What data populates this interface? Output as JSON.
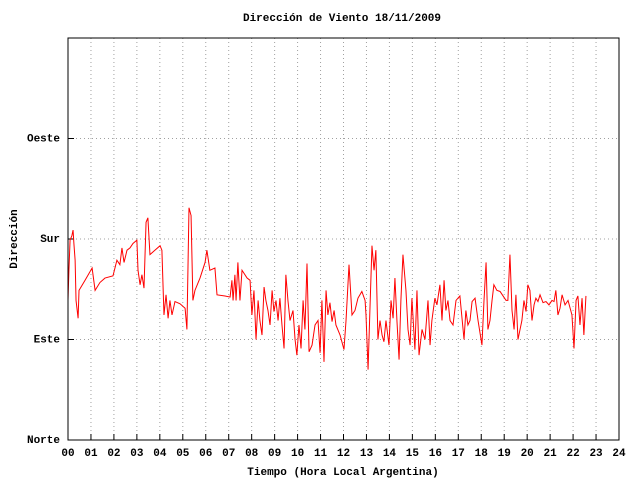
{
  "chart_data": {
    "type": "line",
    "title": "Dirección de Viento 18/11/2009",
    "xlabel": "Tiempo (Hora Local Argentina)",
    "ylabel": "Dirección",
    "color": "#ff0000",
    "grid": true,
    "xlim": [
      0,
      24
    ],
    "ylim": [
      0,
      360
    ],
    "xticks": [
      {
        "value": 0,
        "label": "00"
      },
      {
        "value": 1,
        "label": "01"
      },
      {
        "value": 2,
        "label": "02"
      },
      {
        "value": 3,
        "label": "03"
      },
      {
        "value": 4,
        "label": "04"
      },
      {
        "value": 5,
        "label": "05"
      },
      {
        "value": 6,
        "label": "06"
      },
      {
        "value": 7,
        "label": "07"
      },
      {
        "value": 8,
        "label": "08"
      },
      {
        "value": 9,
        "label": "09"
      },
      10,
      11,
      12,
      13,
      14,
      15,
      16,
      17,
      18,
      19,
      20,
      21,
      22,
      23,
      24
    ],
    "yticks": [
      {
        "value": 0,
        "label": "Norte"
      },
      {
        "value": 90,
        "label": "Este"
      },
      {
        "value": 180,
        "label": "Sur"
      },
      {
        "value": 270,
        "label": "Oeste"
      }
    ],
    "x": [
      0,
      0.04,
      0.09,
      0.17,
      0.22,
      0.26,
      0.31,
      0.35,
      0.44,
      0.48,
      0.74,
      1.05,
      1.18,
      1.39,
      1.61,
      1.96,
      2.13,
      2.26,
      2.35,
      2.44,
      2.57,
      2.7,
      2.83,
      3.0,
      3.05,
      3.14,
      3.22,
      3.31,
      3.4,
      3.48,
      3.57,
      3.79,
      4.01,
      4.09,
      4.18,
      4.27,
      4.36,
      4.44,
      4.53,
      4.66,
      4.88,
      5.1,
      5.18,
      5.27,
      5.36,
      5.44,
      5.53,
      5.75,
      5.97,
      6.05,
      6.18,
      6.4,
      6.49,
      6.84,
      7.06,
      7.14,
      7.19,
      7.27,
      7.32,
      7.4,
      7.49,
      7.58,
      7.8,
      7.93,
      8.01,
      8.1,
      8.19,
      8.28,
      8.36,
      8.45,
      8.54,
      8.62,
      8.71,
      8.8,
      8.89,
      8.97,
      9.06,
      9.15,
      9.23,
      9.32,
      9.41,
      9.49,
      9.58,
      9.67,
      9.8,
      9.89,
      9.97,
      10.06,
      10.15,
      10.24,
      10.32,
      10.41,
      10.5,
      10.63,
      10.76,
      10.89,
      10.98,
      11.06,
      11.15,
      11.24,
      11.32,
      11.41,
      11.5,
      11.59,
      11.67,
      11.85,
      12.02,
      12.11,
      12.24,
      12.37,
      12.5,
      12.63,
      12.8,
      12.94,
      12.98,
      13.07,
      13.15,
      13.24,
      13.33,
      13.41,
      13.5,
      13.59,
      13.68,
      13.76,
      13.85,
      13.98,
      14.07,
      14.16,
      14.24,
      14.33,
      14.42,
      14.5,
      14.59,
      14.72,
      14.81,
      14.9,
      14.98,
      15.11,
      15.2,
      15.29,
      15.42,
      15.55,
      15.68,
      15.77,
      15.85,
      15.98,
      16.07,
      16.2,
      16.29,
      16.38,
      16.46,
      16.55,
      16.64,
      16.77,
      16.9,
      17.07,
      17.25,
      17.33,
      17.42,
      17.51,
      17.6,
      17.73,
      17.86,
      18.03,
      18.12,
      18.21,
      18.29,
      18.38,
      18.47,
      18.55,
      18.68,
      18.82,
      18.95,
      19.08,
      19.16,
      19.25,
      19.34,
      19.43,
      19.51,
      19.6,
      19.69,
      19.77,
      19.86,
      19.95,
      20.03,
      20.12,
      20.21,
      20.3,
      20.38,
      20.47,
      20.56,
      20.69,
      20.82,
      20.95,
      21.08,
      21.17,
      21.25,
      21.34,
      21.43,
      21.52,
      21.65,
      21.78,
      21.95,
      22.04,
      22.13,
      22.21,
      22.3,
      22.39,
      22.47,
      22.56
    ],
    "values": [
      125,
      152,
      179,
      183,
      188,
      175,
      161,
      125,
      109,
      134,
      143,
      154,
      134,
      141,
      145,
      147,
      161,
      157,
      172,
      159,
      170,
      172,
      176,
      179,
      152,
      139,
      148,
      136,
      195,
      199,
      166,
      170,
      174,
      170,
      112,
      130,
      109,
      125,
      112,
      124,
      122,
      118,
      99,
      208,
      201,
      125,
      134,
      145,
      159,
      170,
      152,
      154,
      130,
      129,
      128,
      143,
      125,
      148,
      125,
      159,
      125,
      152,
      145,
      143,
      112,
      134,
      90,
      125,
      107,
      94,
      137,
      125,
      116,
      103,
      134,
      115,
      125,
      107,
      127,
      103,
      82,
      148,
      125,
      107,
      116,
      90,
      76,
      103,
      82,
      125,
      99,
      158,
      79,
      85,
      103,
      107,
      78,
      125,
      70,
      134,
      112,
      123,
      106,
      116,
      103,
      94,
      81,
      107,
      157,
      112,
      116,
      127,
      133,
      125,
      112,
      63,
      116,
      174,
      152,
      170,
      90,
      107,
      94,
      88,
      107,
      85,
      125,
      109,
      145,
      106,
      72,
      125,
      166,
      134,
      99,
      85,
      127,
      81,
      134,
      76,
      99,
      90,
      125,
      85,
      107,
      127,
      121,
      139,
      107,
      143,
      116,
      125,
      107,
      103,
      125,
      129,
      90,
      116,
      103,
      107,
      124,
      127,
      107,
      85,
      125,
      159,
      99,
      107,
      125,
      139,
      134,
      133,
      129,
      125,
      125,
      166,
      116,
      99,
      130,
      90,
      99,
      107,
      125,
      115,
      139,
      134,
      107,
      121,
      127,
      124,
      130,
      123,
      124,
      121,
      125,
      124,
      134,
      112,
      118,
      130,
      121,
      125,
      112,
      82,
      125,
      129,
      103,
      127,
      94,
      129
    ]
  }
}
